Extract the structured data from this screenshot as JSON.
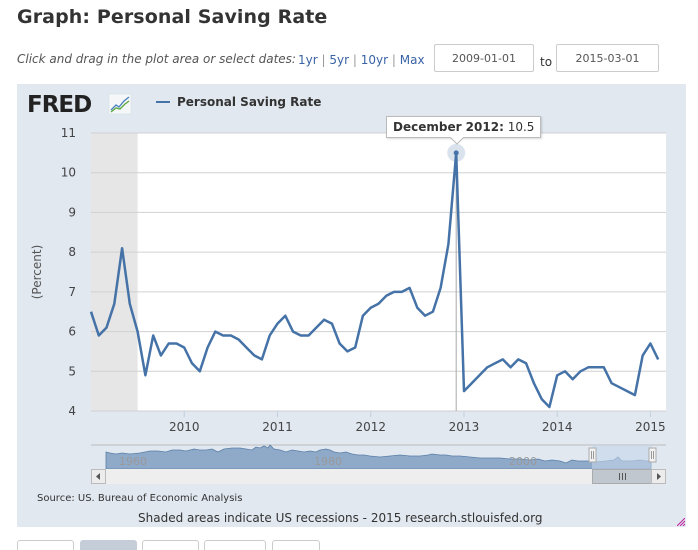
{
  "page": {
    "title": "Graph: Personal Saving Rate",
    "instructions": "Click and drag in the plot area or select dates:",
    "range_links": [
      "1yr",
      "5yr",
      "10yr",
      "Max"
    ],
    "range_separator": "|",
    "start_date": "2009-01-01",
    "end_date": "2015-03-01",
    "to_label": "to"
  },
  "logo": {
    "text": "FRED",
    "icon": "chart-line-icon"
  },
  "tooltip": {
    "label": "December 2012:",
    "value": "10.5"
  },
  "footer": {
    "source": "Source: US. Bureau of Economic Analysis",
    "note": "Shaded areas indicate US recessions - 2015 research.stlouisfed.org"
  },
  "navigator": {
    "tick_labels": [
      "1960",
      "1980",
      "2000"
    ]
  },
  "colors": {
    "series": "#4572a7",
    "panel": "#e1e8f0",
    "recession": "#e6e6e6",
    "navigator_fill": "#8fa9c9",
    "navigator_selected": "#c4d6ea"
  },
  "chart_data": {
    "type": "line",
    "title": "Personal Saving Rate",
    "ylabel": "(Percent)",
    "xlabel": "",
    "ylim": [
      4,
      11
    ],
    "yticks": [
      "4",
      "5",
      "6",
      "7",
      "8",
      "9",
      "10",
      "11"
    ],
    "xticks": [
      "2010",
      "2011",
      "2012",
      "2013",
      "2014",
      "2015"
    ],
    "grid": true,
    "legend": "top-left",
    "recessions": [
      {
        "start": "2009-01",
        "end": "2009-06"
      }
    ],
    "highlight": {
      "x": "2012-12",
      "y": 10.5
    },
    "series": [
      {
        "name": "Personal Saving Rate",
        "x": [
          "2009-01",
          "2009-02",
          "2009-03",
          "2009-04",
          "2009-05",
          "2009-06",
          "2009-07",
          "2009-08",
          "2009-09",
          "2009-10",
          "2009-11",
          "2009-12",
          "2010-01",
          "2010-02",
          "2010-03",
          "2010-04",
          "2010-05",
          "2010-06",
          "2010-07",
          "2010-08",
          "2010-09",
          "2010-10",
          "2010-11",
          "2010-12",
          "2011-01",
          "2011-02",
          "2011-03",
          "2011-04",
          "2011-05",
          "2011-06",
          "2011-07",
          "2011-08",
          "2011-09",
          "2011-10",
          "2011-11",
          "2011-12",
          "2012-01",
          "2012-02",
          "2012-03",
          "2012-04",
          "2012-05",
          "2012-06",
          "2012-07",
          "2012-08",
          "2012-09",
          "2012-10",
          "2012-11",
          "2012-12",
          "2013-01",
          "2013-02",
          "2013-03",
          "2013-04",
          "2013-05",
          "2013-06",
          "2013-07",
          "2013-08",
          "2013-09",
          "2013-10",
          "2013-11",
          "2013-12",
          "2014-01",
          "2014-02",
          "2014-03",
          "2014-04",
          "2014-05",
          "2014-06",
          "2014-07",
          "2014-08",
          "2014-09",
          "2014-10",
          "2014-11",
          "2014-12",
          "2015-01",
          "2015-02"
        ],
        "values": [
          6.5,
          5.9,
          6.1,
          6.7,
          8.1,
          6.7,
          6.0,
          4.9,
          5.9,
          5.4,
          5.7,
          5.7,
          5.6,
          5.2,
          5.0,
          5.6,
          6.0,
          5.9,
          5.9,
          5.8,
          5.6,
          5.4,
          5.3,
          5.9,
          6.2,
          6.4,
          6.0,
          5.9,
          5.9,
          6.1,
          6.3,
          6.2,
          5.7,
          5.5,
          5.6,
          6.4,
          6.6,
          6.7,
          6.9,
          7.0,
          7.0,
          7.1,
          6.6,
          6.4,
          6.5,
          7.1,
          8.2,
          10.5,
          4.5,
          4.7,
          4.9,
          5.1,
          5.2,
          5.3,
          5.1,
          5.3,
          5.2,
          4.7,
          4.3,
          4.1,
          4.9,
          5.0,
          4.8,
          5.0,
          5.1,
          5.1,
          5.1,
          4.7,
          4.6,
          4.5,
          4.4,
          5.4,
          5.7,
          5.3
        ]
      }
    ]
  }
}
